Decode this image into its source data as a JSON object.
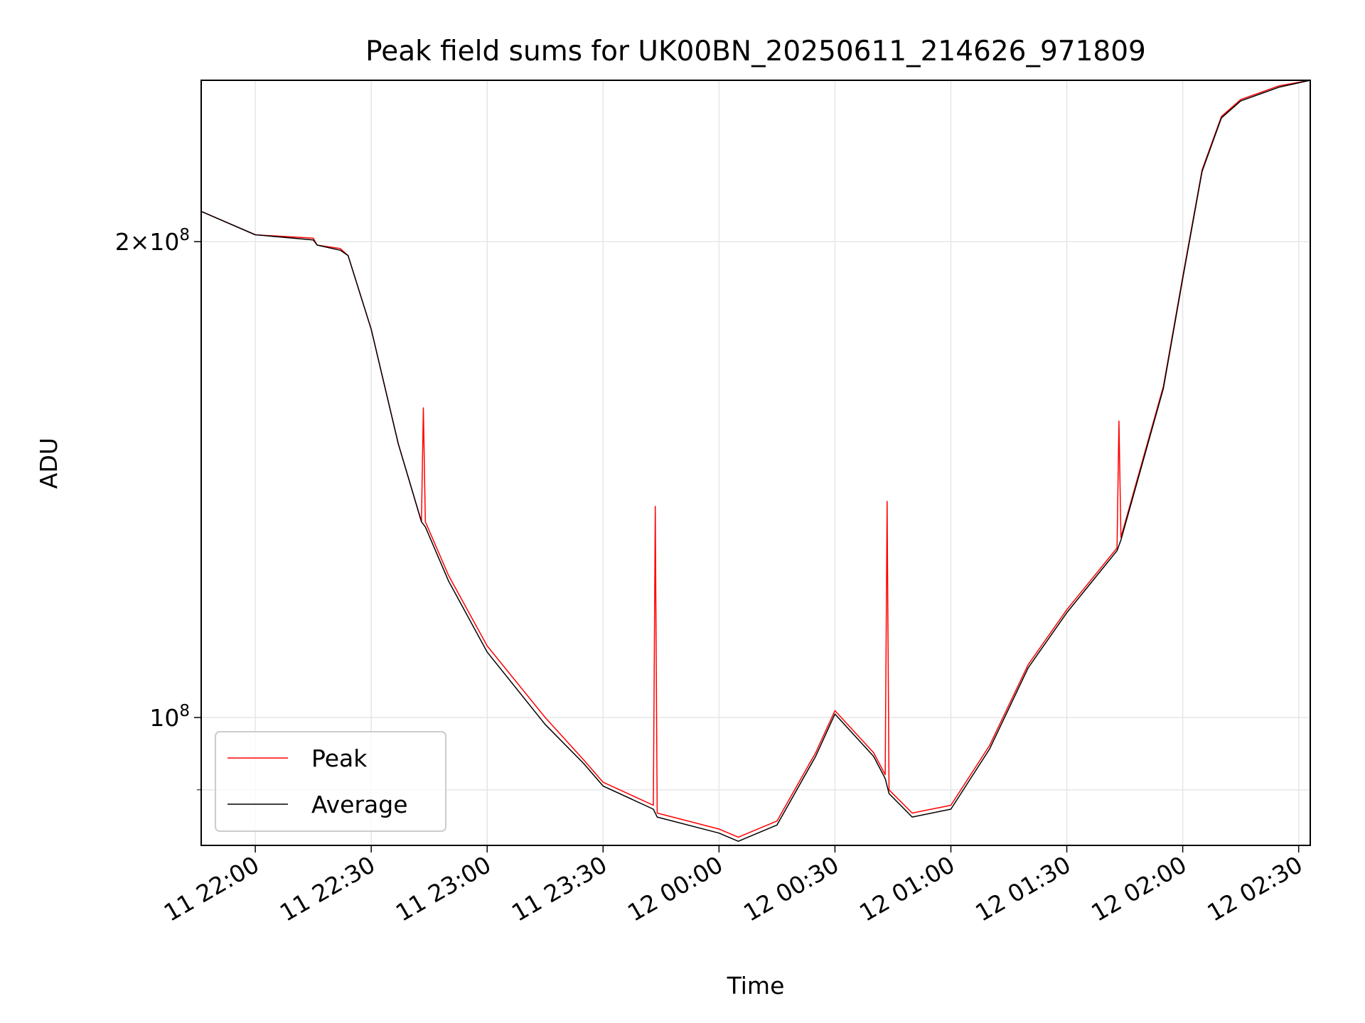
{
  "chart_data": {
    "type": "line",
    "title": "Peak field sums for UK00BN_20250611_214626_971809",
    "xlabel": "Time",
    "ylabel": "ADU",
    "x_ticks": [
      "11 22:00",
      "11 22:30",
      "11 23:00",
      "11 23:30",
      "12 00:00",
      "12 00:30",
      "12 01:00",
      "12 01:30",
      "12 02:00",
      "12 02:30"
    ],
    "y_ticks": [
      {
        "value": 200000000,
        "base": "2×10",
        "exp": "8"
      },
      {
        "value": 100000000,
        "base": "10",
        "exp": "8"
      }
    ],
    "y_scale": "log",
    "x_range": [
      "2025-06-11 21:46",
      "2025-06-12 02:33"
    ],
    "ylim": [
      83000000,
      253000000
    ],
    "grid": true,
    "legend_position": "lower-left",
    "colors": {
      "Peak": "#ff0000",
      "Average": "#000000",
      "grid": "#e6e6e6"
    },
    "series": [
      {
        "name": "Peak",
        "color": "#ff0000",
        "x": [
          "2025-06-11 21:46",
          "2025-06-11 22:00",
          "2025-06-11 22:15",
          "2025-06-11 22:16",
          "2025-06-11 22:22",
          "2025-06-11 22:24",
          "2025-06-11 22:30",
          "2025-06-11 22:37",
          "2025-06-11 22:43",
          "2025-06-11 22:43:30",
          "2025-06-11 22:44",
          "2025-06-11 22:50",
          "2025-06-11 23:00",
          "2025-06-11 23:15",
          "2025-06-11 23:25",
          "2025-06-11 23:30",
          "2025-06-11 23:43",
          "2025-06-11 23:43:30",
          "2025-06-11 23:44",
          "2025-06-12 00:00",
          "2025-06-12 00:05",
          "2025-06-12 00:15",
          "2025-06-12 00:25",
          "2025-06-12 00:30",
          "2025-06-12 00:40",
          "2025-06-12 00:43",
          "2025-06-12 00:43:30",
          "2025-06-12 00:44",
          "2025-06-12 00:50",
          "2025-06-12 01:00",
          "2025-06-12 01:10",
          "2025-06-12 01:20",
          "2025-06-12 01:30",
          "2025-06-12 01:43",
          "2025-06-12 01:43:30",
          "2025-06-12 01:44",
          "2025-06-12 01:55",
          "2025-06-12 02:00",
          "2025-06-12 02:05",
          "2025-06-12 02:10",
          "2025-06-12 02:15",
          "2025-06-12 02:25",
          "2025-06-12 02:33"
        ],
        "y": [
          209000000,
          202000000,
          201000000,
          199000000,
          198000000,
          196000000,
          176000000,
          149000000,
          133000000,
          157000000,
          133000000,
          123000000,
          111000000,
          100000000,
          94000000,
          91000000,
          88000000,
          136000000,
          87000000,
          85000000,
          84000000,
          86000000,
          95000000,
          101000000,
          95000000,
          92000000,
          137000000,
          90000000,
          87000000,
          88000000,
          96000000,
          108000000,
          117000000,
          128000000,
          154000000,
          130000000,
          162000000,
          190000000,
          222000000,
          240000000,
          246000000,
          251000000,
          253000000
        ]
      },
      {
        "name": "Average",
        "color": "#000000",
        "x": [
          "2025-06-11 21:46",
          "2025-06-11 22:00",
          "2025-06-11 22:15",
          "2025-06-11 22:16",
          "2025-06-11 22:22",
          "2025-06-11 22:24",
          "2025-06-11 22:30",
          "2025-06-11 22:37",
          "2025-06-11 22:43",
          "2025-06-11 22:44",
          "2025-06-11 22:50",
          "2025-06-11 23:00",
          "2025-06-11 23:15",
          "2025-06-11 23:25",
          "2025-06-11 23:30",
          "2025-06-11 23:43",
          "2025-06-11 23:44",
          "2025-06-12 00:00",
          "2025-06-12 00:05",
          "2025-06-12 00:15",
          "2025-06-12 00:25",
          "2025-06-12 00:30",
          "2025-06-12 00:40",
          "2025-06-12 00:43",
          "2025-06-12 00:44",
          "2025-06-12 00:50",
          "2025-06-12 01:00",
          "2025-06-12 01:10",
          "2025-06-12 01:20",
          "2025-06-12 01:30",
          "2025-06-12 01:43",
          "2025-06-12 01:44",
          "2025-06-12 01:55",
          "2025-06-12 02:00",
          "2025-06-12 02:05",
          "2025-06-12 02:10",
          "2025-06-12 02:15",
          "2025-06-12 02:25",
          "2025-06-12 02:33"
        ],
        "y": [
          209000000,
          202000000,
          200500000,
          199000000,
          197500000,
          196000000,
          176000000,
          149000000,
          133000000,
          132000000,
          122000000,
          110000000,
          99000000,
          93500000,
          90500000,
          87500000,
          86500000,
          84500000,
          83500000,
          85500000,
          94500000,
          100500000,
          94500000,
          91500000,
          89500000,
          86500000,
          87500000,
          95500000,
          107500000,
          116500000,
          127500000,
          129500000,
          161500000,
          189500000,
          221500000,
          239500000,
          245500000,
          250500000,
          253000000
        ]
      }
    ]
  }
}
